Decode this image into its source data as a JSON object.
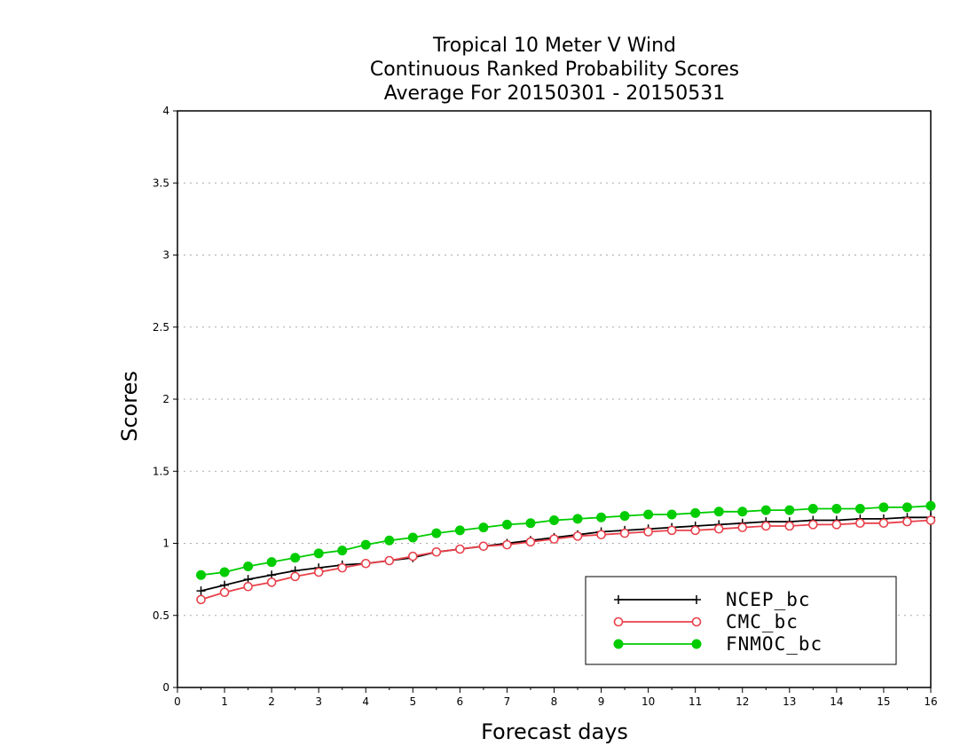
{
  "chart_data": {
    "type": "line",
    "title_lines": [
      "Tropical 10 Meter V Wind",
      "Continuous Ranked Probability Scores",
      "Average For 20150301 - 20150531"
    ],
    "xlabel": "Forecast days",
    "ylabel": "Scores",
    "xlim": [
      0,
      16
    ],
    "ylim": [
      0,
      4
    ],
    "x_ticks": [
      "0",
      "1",
      "2",
      "3",
      "4",
      "5",
      "6",
      "7",
      "8",
      "9",
      "10",
      "11",
      "12",
      "13",
      "14",
      "15",
      "16"
    ],
    "y_ticks": [
      "0",
      "0.5",
      "1",
      "1.5",
      "2",
      "2.5",
      "3",
      "3.5",
      "4"
    ],
    "grid": "horizontal-dotted",
    "legend_position": "bottom-right",
    "x": [
      0.5,
      1,
      1.5,
      2,
      2.5,
      3,
      3.5,
      4,
      4.5,
      5,
      5.5,
      6,
      6.5,
      7,
      7.5,
      8,
      8.5,
      9,
      9.5,
      10,
      10.5,
      11,
      11.5,
      12,
      12.5,
      13,
      13.5,
      14,
      14.5,
      15,
      15.5,
      16
    ],
    "series": [
      {
        "name": "NCEP_bc",
        "color": "#000000",
        "marker": "plus",
        "values": [
          0.67,
          0.71,
          0.75,
          0.78,
          0.81,
          0.83,
          0.85,
          0.86,
          0.88,
          0.9,
          0.94,
          0.96,
          0.98,
          1.0,
          1.02,
          1.04,
          1.06,
          1.08,
          1.09,
          1.1,
          1.11,
          1.12,
          1.13,
          1.14,
          1.15,
          1.15,
          1.16,
          1.16,
          1.17,
          1.17,
          1.18,
          1.18
        ]
      },
      {
        "name": "CMC_bc",
        "color": "#e8404a",
        "marker": "open-circle",
        "values": [
          0.61,
          0.66,
          0.7,
          0.73,
          0.77,
          0.8,
          0.83,
          0.86,
          0.88,
          0.91,
          0.94,
          0.96,
          0.98,
          0.99,
          1.01,
          1.03,
          1.05,
          1.06,
          1.07,
          1.08,
          1.09,
          1.09,
          1.1,
          1.11,
          1.12,
          1.12,
          1.13,
          1.13,
          1.14,
          1.14,
          1.15,
          1.16
        ]
      },
      {
        "name": "FNMOC_bc",
        "color": "#00cc00",
        "marker": "filled-circle",
        "values": [
          0.78,
          0.8,
          0.84,
          0.87,
          0.9,
          0.93,
          0.95,
          0.99,
          1.02,
          1.04,
          1.07,
          1.09,
          1.11,
          1.13,
          1.14,
          1.16,
          1.17,
          1.18,
          1.19,
          1.2,
          1.2,
          1.21,
          1.22,
          1.22,
          1.23,
          1.23,
          1.24,
          1.24,
          1.24,
          1.25,
          1.25,
          1.26
        ]
      }
    ]
  }
}
